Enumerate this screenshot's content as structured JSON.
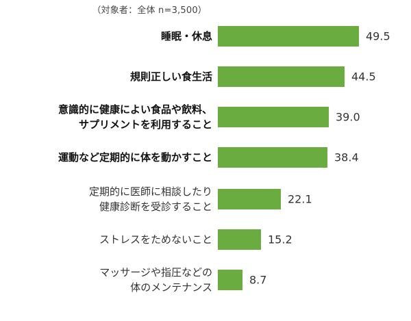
{
  "chart_data": {
    "type": "bar",
    "orientation": "horizontal",
    "title": "",
    "subtitle": "（対象者：全体 n=3,500）",
    "xlabel": "",
    "ylabel": "",
    "unit": "%",
    "categories": [
      "睡眠・休息",
      "規則正しい食生活",
      "意識的に健康によい食品や飲料、サプリメントを利用すること",
      "運動など定期的に体を動かすこと",
      "定期的に医師に相談したり健康診断を受診すること",
      "ストレスをためないこと",
      "マッサージや指圧などの体のメンテナンス"
    ],
    "values": [
      49.5,
      44.5,
      39.0,
      38.4,
      22.1,
      15.2,
      8.7
    ],
    "value_labels": [
      "49.5",
      "44.5",
      "39.0",
      "38.4",
      "22.1",
      "15.2",
      "8.7"
    ],
    "bar_color": "#6aac40",
    "grid": false,
    "legend": null
  },
  "note": "（対象者：全体 n=3,500）",
  "rows": [
    {
      "lines": [
        "睡眠・休息"
      ],
      "value": "49.5",
      "bold": true
    },
    {
      "lines": [
        "規則正しい食生活"
      ],
      "value": "44.5",
      "bold": true
    },
    {
      "lines": [
        "意識的に健康によい食品や飲料、",
        "サプリメントを利用すること"
      ],
      "value": "39.0",
      "bold": true
    },
    {
      "lines": [
        "運動など定期的に体を動かすこと"
      ],
      "value": "38.4",
      "bold": true
    },
    {
      "lines": [
        "定期的に医師に相談したり",
        "健康診断を受診すること"
      ],
      "value": "22.1",
      "bold": false
    },
    {
      "lines": [
        "ストレスをためないこと"
      ],
      "value": "15.2",
      "bold": false
    },
    {
      "lines": [
        "マッサージや指圧などの",
        "体のメンテナンス"
      ],
      "value": "8.7",
      "bold": false
    }
  ]
}
